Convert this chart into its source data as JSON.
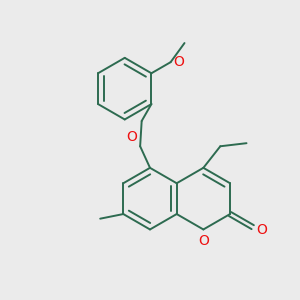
{
  "bg_color": "#ebebeb",
  "bond_color": "#2d6b50",
  "heteroatom_color": "#ee1111",
  "line_width": 1.4,
  "font_size": 8.5,
  "xlim": [
    -0.3,
    2.8
  ],
  "ylim": [
    -0.2,
    3.5
  ],
  "figsize": [
    3.0,
    3.0
  ],
  "dpi": 100
}
